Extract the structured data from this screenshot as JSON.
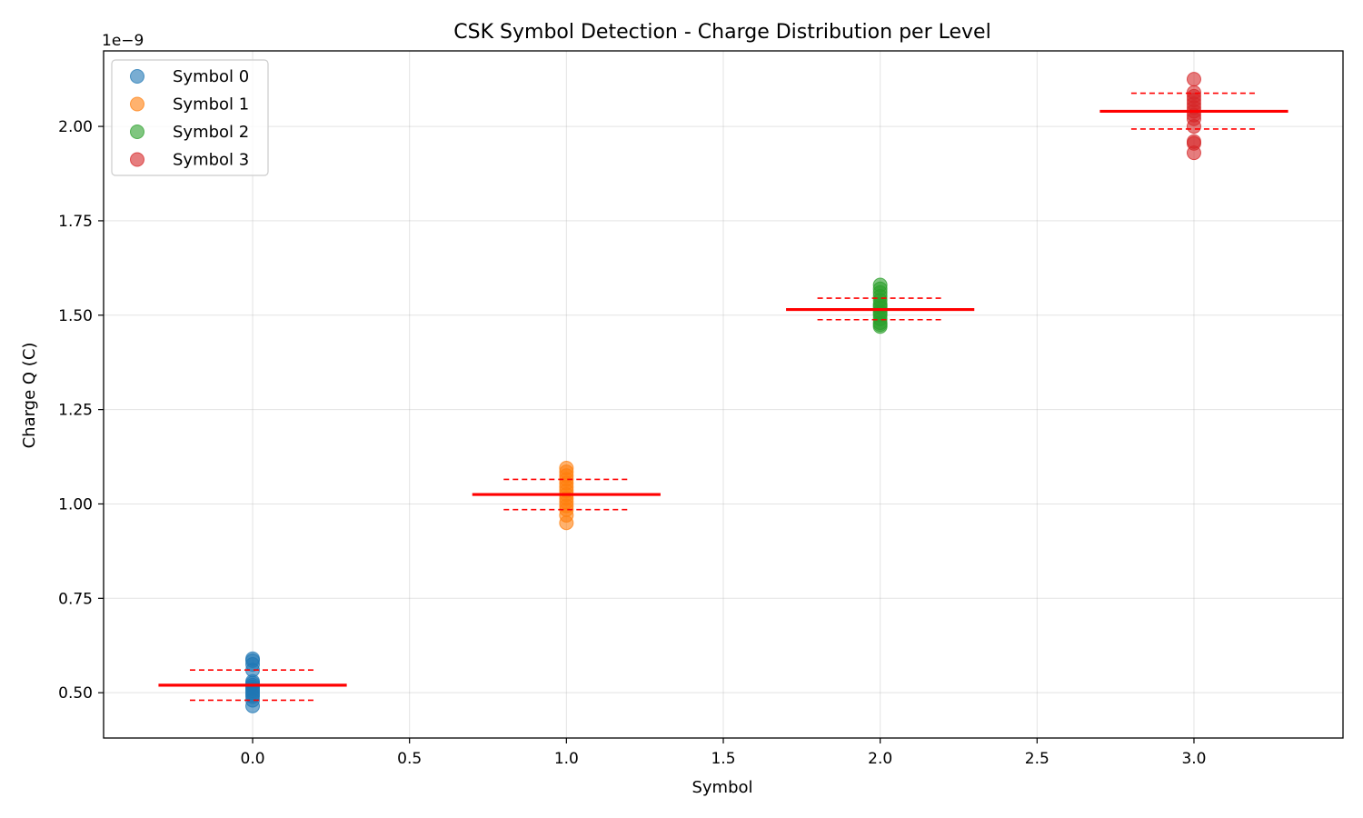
{
  "chart_data": {
    "type": "scatter",
    "title": "CSK Symbol Detection - Charge Distribution per Level",
    "xlabel": "Symbol",
    "ylabel": "Charge Q (C)",
    "y_offset_label": "1e−9",
    "xlim": [
      -0.475,
      3.475
    ],
    "ylim": [
      0.38,
      2.2
    ],
    "y_scale_factor": "1e-9",
    "x_ticks": [
      0.0,
      0.5,
      1.0,
      1.5,
      2.0,
      2.5,
      3.0
    ],
    "x_tick_labels": [
      "0.0",
      "0.5",
      "1.0",
      "1.5",
      "2.0",
      "2.5",
      "3.0"
    ],
    "y_ticks": [
      0.5,
      0.75,
      1.0,
      1.25,
      1.5,
      1.75,
      2.0
    ],
    "y_tick_labels": [
      "0.50",
      "0.75",
      "1.00",
      "1.25",
      "1.50",
      "1.75",
      "2.00"
    ],
    "grid": true,
    "legend_position": "top-left",
    "series": [
      {
        "name": "Symbol 0",
        "color": "#1f77b4",
        "x": 0,
        "values": [
          0.465,
          0.48,
          0.49,
          0.495,
          0.5,
          0.505,
          0.51,
          0.515,
          0.52,
          0.525,
          0.53,
          0.56,
          0.575,
          0.585,
          0.59
        ],
        "mean": 0.52,
        "std_upper": 0.56,
        "std_lower": 0.48
      },
      {
        "name": "Symbol 1",
        "color": "#ff7f0e",
        "x": 1,
        "values": [
          0.95,
          0.97,
          0.985,
          0.995,
          1.005,
          1.015,
          1.025,
          1.035,
          1.045,
          1.055,
          1.065,
          1.075,
          1.085,
          1.095
        ],
        "mean": 1.025,
        "std_upper": 1.065,
        "std_lower": 0.985
      },
      {
        "name": "Symbol 2",
        "color": "#2ca02c",
        "x": 2,
        "values": [
          1.47,
          1.475,
          1.48,
          1.49,
          1.5,
          1.505,
          1.51,
          1.52,
          1.525,
          1.53,
          1.54,
          1.55,
          1.56,
          1.57,
          1.58
        ],
        "mean": 1.515,
        "std_upper": 1.545,
        "std_lower": 1.488
      },
      {
        "name": "Symbol 3",
        "color": "#d62728",
        "x": 3,
        "values": [
          1.93,
          1.955,
          1.96,
          2.0,
          2.02,
          2.03,
          2.04,
          2.05,
          2.06,
          2.07,
          2.08,
          2.09,
          2.125
        ],
        "mean": 2.04,
        "std_upper": 2.088,
        "std_lower": 1.993
      }
    ],
    "mean_line_color": "#ff0000"
  }
}
